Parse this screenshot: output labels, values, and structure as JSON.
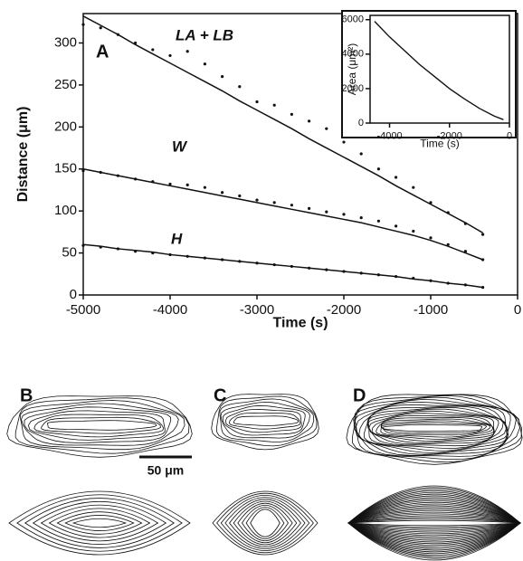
{
  "chart_data": [
    {
      "type": "scatter",
      "panel": "A",
      "x_label": "Time (s)",
      "y_label": "Distance (μm)",
      "xlim": [
        -5000,
        0
      ],
      "xticks": [
        -5000,
        -4000,
        -3000,
        -2000,
        -1000,
        0
      ],
      "ylim": [
        0,
        335
      ],
      "yticks": [
        0,
        50,
        100,
        150,
        200,
        250,
        300
      ],
      "color": "#111111",
      "x": [
        -5000,
        -4800,
        -4600,
        -4400,
        -4200,
        -4000,
        -3800,
        -3600,
        -3400,
        -3200,
        -3000,
        -2800,
        -2600,
        -2400,
        -2200,
        -2000,
        -1800,
        -1600,
        -1400,
        -1200,
        -1000,
        -800,
        -600,
        -400
      ],
      "series": [
        {
          "name": "LA + LB",
          "values": [
            322,
            318,
            310,
            300,
            292,
            285,
            290,
            275,
            260,
            248,
            230,
            226,
            215,
            207,
            198,
            182,
            168,
            150,
            140,
            128,
            110,
            98,
            85,
            72
          ],
          "fit_values": [
            332,
            321,
            310,
            298,
            287,
            276,
            265,
            254,
            243,
            231,
            220,
            209,
            198,
            186,
            175,
            164,
            153,
            142,
            130,
            119,
            108,
            97,
            86,
            74
          ]
        },
        {
          "name": "W",
          "values": [
            148,
            146,
            142,
            138,
            135,
            132,
            131,
            128,
            122,
            118,
            113,
            110,
            107,
            103,
            99,
            96,
            92,
            88,
            82,
            76,
            68,
            60,
            52,
            42
          ],
          "fit_values": [
            150,
            146,
            142,
            138,
            134,
            130,
            126,
            122,
            118,
            114,
            110,
            106,
            102,
            98,
            94,
            90,
            86,
            81,
            76,
            71,
            65,
            58,
            50,
            42
          ]
        },
        {
          "name": "H",
          "values": [
            59,
            57,
            55,
            52,
            50,
            48,
            46,
            44,
            42,
            40,
            38,
            36,
            34,
            32,
            30,
            28,
            26,
            24,
            22,
            20,
            17,
            14,
            12,
            9
          ],
          "fit_values": [
            60,
            58,
            55,
            53,
            51,
            48,
            46,
            44,
            42,
            40,
            38,
            36,
            34,
            32,
            30,
            28,
            26,
            24,
            22,
            19,
            17,
            14,
            12,
            9
          ]
        }
      ]
    },
    {
      "type": "line",
      "x_label": "Time (s)",
      "y_label": "Area (μm²)",
      "xlim": [
        -4650,
        0
      ],
      "xticks": [
        -4000,
        -2000,
        0
      ],
      "ylim": [
        0,
        6250
      ],
      "yticks": [
        0,
        2000,
        4000,
        6000
      ],
      "color": "#111111",
      "x": [
        -4500,
        -4000,
        -3500,
        -3000,
        -2500,
        -2000,
        -1500,
        -1000,
        -500,
        -200
      ],
      "values": [
        5900,
        5000,
        4200,
        3400,
        2700,
        2000,
        1400,
        850,
        400,
        200
      ]
    }
  ],
  "panels": [
    "B",
    "C",
    "D"
  ],
  "scale_bar": "50 μm"
}
